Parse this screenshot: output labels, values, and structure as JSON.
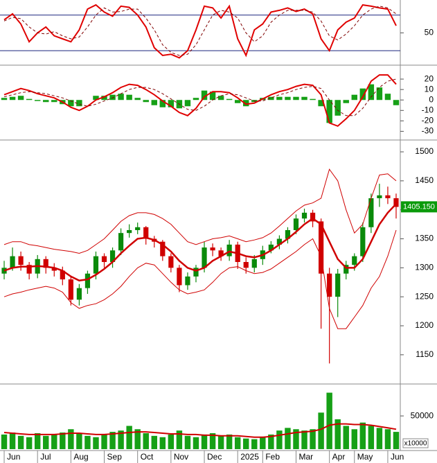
{
  "chart_data": [
    {
      "type": "line",
      "ylim": [
        -2,
        103
      ],
      "yticks": [
        50
      ],
      "xlim": [
        -0.5,
        47.5
      ],
      "hlines": [
        80,
        20
      ],
      "hline_color": "#1a237e",
      "series": [
        {
          "kind": "line",
          "color": "#e00000",
          "width": 2,
          "values": [
            72,
            82,
            65,
            35,
            50,
            60,
            45,
            40,
            35,
            55,
            90,
            97,
            85,
            78,
            95,
            93,
            80,
            60,
            25,
            12,
            14,
            8,
            20,
            55,
            95,
            92,
            75,
            95,
            40,
            12,
            55,
            65,
            85,
            88,
            92,
            86,
            90,
            82,
            40,
            20,
            55,
            68,
            75,
            97,
            95,
            92,
            90,
            62
          ]
        },
        {
          "kind": "line",
          "color": "#800000",
          "width": 1,
          "dash": true,
          "values": [
            70,
            76,
            74,
            60,
            50,
            48,
            52,
            45,
            40,
            43,
            60,
            80,
            92,
            85,
            86,
            90,
            90,
            75,
            55,
            30,
            17,
            12,
            14,
            30,
            55,
            80,
            88,
            85,
            75,
            50,
            35,
            45,
            68,
            80,
            88,
            88,
            88,
            85,
            70,
            45,
            38,
            48,
            62,
            80,
            90,
            95,
            92,
            82
          ]
        }
      ]
    },
    {
      "type": "line",
      "ylim": [
        -37,
        32
      ],
      "yticks": [
        -30,
        -20,
        -10,
        0,
        10,
        20
      ],
      "xlim": [
        -0.5,
        47.5
      ],
      "series": [
        {
          "kind": "bar",
          "color": "#16a016",
          "values": [
            2,
            3,
            4,
            1,
            -1,
            -2,
            -2,
            -4,
            -6,
            -6,
            0,
            4,
            4,
            5,
            6,
            5,
            2,
            -2,
            -5,
            -7,
            -7,
            -8,
            -6,
            2,
            9,
            8,
            4,
            1,
            -3,
            -6,
            -2,
            2,
            3,
            3,
            3,
            3,
            3,
            1,
            -6,
            -22,
            -15,
            -3,
            5,
            11,
            15,
            12,
            6,
            -5
          ]
        },
        {
          "kind": "line",
          "color": "#e00000",
          "width": 2,
          "values": [
            5,
            8,
            11,
            9,
            6,
            4,
            2,
            -2,
            -7,
            -10,
            -6,
            0,
            3,
            7,
            12,
            15,
            14,
            10,
            5,
            -1,
            -6,
            -12,
            -15,
            -8,
            3,
            8,
            8,
            7,
            2,
            -4,
            -3,
            1,
            5,
            8,
            10,
            13,
            15,
            14,
            5,
            -22,
            -25,
            -18,
            -10,
            3,
            18,
            24,
            24,
            15
          ]
        },
        {
          "kind": "line",
          "color": "#800000",
          "width": 1,
          "dash": true,
          "values": [
            3,
            5,
            7,
            8,
            7,
            6,
            4,
            2,
            -1,
            -4,
            -6,
            -4,
            -1,
            2,
            6,
            10,
            12,
            12,
            10,
            6,
            1,
            -4,
            -9,
            -10,
            -6,
            0,
            4,
            6,
            5,
            2,
            -1,
            -1,
            2,
            5,
            7,
            10,
            12,
            13,
            11,
            0,
            -10,
            -15,
            -15,
            -8,
            3,
            12,
            18,
            20
          ]
        }
      ]
    },
    {
      "type": "candlestick",
      "ylim": [
        1102,
        1518
      ],
      "yticks": [
        1150,
        1200,
        1250,
        1300,
        1350,
        1400,
        1450,
        1500
      ],
      "xlim": [
        -0.5,
        47.5
      ],
      "up_color": "#0a8a0a",
      "down_color": "#d00000",
      "open": [
        1290,
        1300,
        1320,
        1305,
        1290,
        1315,
        1300,
        1295,
        1280,
        1245,
        1265,
        1290,
        1320,
        1310,
        1330,
        1360,
        1365,
        1370,
        1350,
        1345,
        1320,
        1300,
        1270,
        1285,
        1300,
        1335,
        1330,
        1320,
        1340,
        1310,
        1300,
        1315,
        1330,
        1340,
        1350,
        1365,
        1385,
        1395,
        1380,
        1290,
        1250,
        1290,
        1305,
        1320,
        1370,
        1420,
        1425,
        1420
      ],
      "high": [
        1312,
        1335,
        1328,
        1310,
        1322,
        1320,
        1308,
        1302,
        1285,
        1272,
        1295,
        1328,
        1325,
        1335,
        1368,
        1375,
        1378,
        1372,
        1355,
        1348,
        1325,
        1305,
        1292,
        1305,
        1345,
        1342,
        1335,
        1348,
        1345,
        1318,
        1322,
        1338,
        1346,
        1356,
        1370,
        1392,
        1402,
        1400,
        1385,
        1300,
        1298,
        1312,
        1325,
        1378,
        1428,
        1445,
        1440,
        1428
      ],
      "low": [
        1280,
        1295,
        1295,
        1280,
        1282,
        1290,
        1285,
        1270,
        1235,
        1235,
        1255,
        1280,
        1300,
        1300,
        1322,
        1352,
        1358,
        1340,
        1335,
        1312,
        1292,
        1258,
        1262,
        1275,
        1292,
        1320,
        1312,
        1312,
        1298,
        1290,
        1292,
        1305,
        1325,
        1332,
        1342,
        1358,
        1378,
        1370,
        1195,
        1135,
        1215,
        1280,
        1295,
        1310,
        1360,
        1405,
        1410,
        1385
      ],
      "close": [
        1300,
        1320,
        1305,
        1290,
        1315,
        1300,
        1295,
        1280,
        1245,
        1265,
        1290,
        1320,
        1310,
        1330,
        1360,
        1365,
        1370,
        1350,
        1345,
        1320,
        1300,
        1270,
        1285,
        1300,
        1335,
        1330,
        1320,
        1340,
        1310,
        1300,
        1315,
        1330,
        1340,
        1350,
        1365,
        1385,
        1395,
        1380,
        1290,
        1250,
        1290,
        1305,
        1320,
        1370,
        1420,
        1425,
        1420,
        1405
      ],
      "last_price": {
        "value": 1405.15,
        "label": "1405.150"
      },
      "last_price_color": "#0a9a0a",
      "series": [
        {
          "kind": "line",
          "color": "#d00000",
          "width": 1,
          "values": [
            1340,
            1345,
            1345,
            1340,
            1338,
            1335,
            1332,
            1330,
            1328,
            1325,
            1330,
            1340,
            1350,
            1365,
            1380,
            1390,
            1395,
            1395,
            1392,
            1385,
            1375,
            1360,
            1345,
            1340,
            1345,
            1350,
            1352,
            1355,
            1350,
            1345,
            1348,
            1352,
            1360,
            1372,
            1385,
            1398,
            1408,
            1412,
            1420,
            1470,
            1450,
            1400,
            1360,
            1375,
            1420,
            1460,
            1462,
            1450
          ]
        },
        {
          "kind": "line",
          "color": "#d00000",
          "width": 1,
          "values": [
            1250,
            1255,
            1258,
            1262,
            1265,
            1268,
            1265,
            1258,
            1240,
            1230,
            1235,
            1238,
            1245,
            1255,
            1268,
            1285,
            1300,
            1308,
            1305,
            1290,
            1275,
            1262,
            1255,
            1258,
            1262,
            1275,
            1290,
            1300,
            1302,
            1295,
            1290,
            1292,
            1298,
            1308,
            1318,
            1328,
            1340,
            1350,
            1320,
            1230,
            1195,
            1195,
            1215,
            1235,
            1265,
            1285,
            1320,
            1365
          ]
        },
        {
          "kind": "line",
          "color": "#d00000",
          "width": 2.5,
          "values": [
            1295,
            1300,
            1302,
            1302,
            1303,
            1302,
            1300,
            1295,
            1285,
            1278,
            1280,
            1288,
            1298,
            1310,
            1325,
            1338,
            1350,
            1352,
            1348,
            1340,
            1328,
            1312,
            1300,
            1295,
            1300,
            1312,
            1320,
            1328,
            1325,
            1320,
            1318,
            1322,
            1330,
            1340,
            1350,
            1362,
            1375,
            1385,
            1375,
            1345,
            1315,
            1300,
            1300,
            1315,
            1345,
            1375,
            1395,
            1410
          ]
        }
      ]
    },
    {
      "type": "bar",
      "ylim": [
        0,
        96000
      ],
      "yticks": [
        50000
      ],
      "xlim": [
        -0.5,
        47.5
      ],
      "y_axis_label": "x10000",
      "xticks": [
        {
          "value": 0,
          "label": "Jun"
        },
        {
          "value": 4,
          "label": "Jul"
        },
        {
          "value": 8,
          "label": "Aug"
        },
        {
          "value": 12,
          "label": "Sep"
        },
        {
          "value": 16,
          "label": "Oct"
        },
        {
          "value": 20,
          "label": "Nov"
        },
        {
          "value": 24,
          "label": "Dec"
        },
        {
          "value": 28,
          "label": "2025"
        },
        {
          "value": 31,
          "label": "Feb"
        },
        {
          "value": 35,
          "label": "Mar"
        },
        {
          "value": 39,
          "label": "Apr"
        },
        {
          "value": 42,
          "label": "May"
        },
        {
          "value": 46,
          "label": "Jun"
        }
      ],
      "series": [
        {
          "kind": "bar",
          "color": "#16a016",
          "values": [
            22000,
            25000,
            20000,
            18000,
            24000,
            20000,
            22000,
            25000,
            30000,
            24000,
            20000,
            18000,
            22000,
            26000,
            28000,
            35000,
            30000,
            24000,
            20000,
            18000,
            22000,
            28000,
            20000,
            18000,
            22000,
            24000,
            20000,
            22000,
            18000,
            16000,
            15000,
            18000,
            22000,
            28000,
            32000,
            30000,
            28000,
            30000,
            55000,
            85000,
            45000,
            35000,
            30000,
            40000,
            35000,
            32000,
            30000,
            26000
          ]
        },
        {
          "kind": "line",
          "color": "#d00000",
          "width": 2,
          "values": [
            25000,
            24000,
            23000,
            22000,
            22000,
            22000,
            22000,
            23000,
            24000,
            24000,
            23000,
            22000,
            22000,
            23000,
            24000,
            25000,
            26000,
            26000,
            25000,
            24000,
            23000,
            23000,
            22000,
            22000,
            21000,
            21000,
            20000,
            20000,
            20000,
            19000,
            18000,
            18000,
            19000,
            21000,
            23000,
            25000,
            26000,
            27000,
            30000,
            36000,
            38000,
            38000,
            37000,
            37000,
            36000,
            34000,
            32000,
            30000
          ]
        }
      ]
    }
  ]
}
